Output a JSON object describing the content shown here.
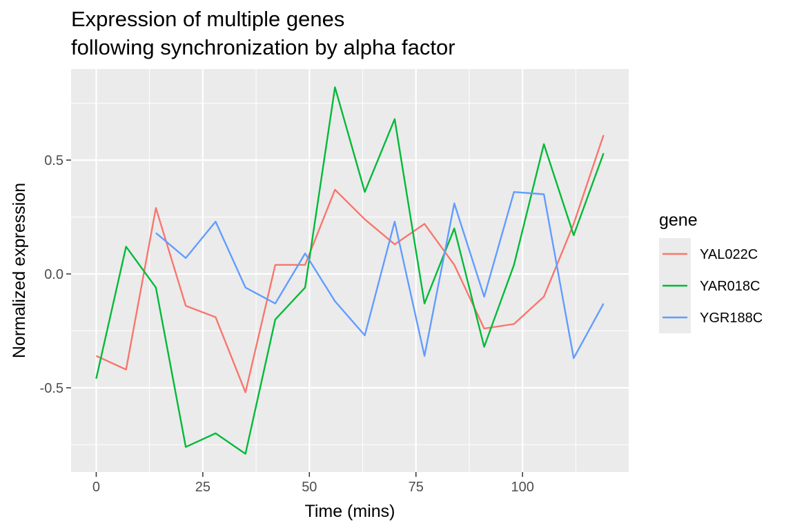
{
  "chart_data": {
    "type": "line",
    "title": [
      "Expression of multiple genes",
      "following synchronization by alpha factor"
    ],
    "xlabel": "Time (mins)",
    "ylabel": "Normalized expression",
    "xlim": [
      -5.9,
      124.9
    ],
    "ylim": [
      -0.87,
      0.9
    ],
    "x_ticks": [
      0,
      25,
      50,
      75,
      100
    ],
    "x_tick_labels": [
      "0",
      "25",
      "50",
      "75",
      "100"
    ],
    "y_ticks": [
      -0.5,
      0.0,
      0.5
    ],
    "y_tick_labels": [
      "-0.5",
      "0.0",
      "0.5"
    ],
    "grid": true,
    "legend_title": "gene",
    "legend_position": "right",
    "series": [
      {
        "name": "YAL022C",
        "color": "#F8766D",
        "points": [
          [
            0,
            -0.36
          ],
          [
            7,
            -0.42
          ],
          [
            14,
            0.29
          ],
          [
            21,
            -0.14
          ],
          [
            28,
            -0.19
          ],
          [
            35,
            -0.52
          ],
          [
            42,
            0.04
          ],
          [
            49,
            0.04
          ],
          [
            56,
            0.37
          ],
          [
            63,
            0.24
          ],
          [
            70,
            0.13
          ],
          [
            77,
            0.22
          ],
          [
            84,
            0.04
          ],
          [
            91,
            -0.24
          ],
          [
            98,
            -0.22
          ],
          [
            105,
            -0.1
          ],
          [
            112,
            0.22
          ],
          [
            119,
            0.61
          ]
        ]
      },
      {
        "name": "YAR018C",
        "color": "#00BA38",
        "points": [
          [
            0,
            -0.46
          ],
          [
            7,
            0.12
          ],
          [
            14,
            -0.06
          ],
          [
            21,
            -0.76
          ],
          [
            28,
            -0.7
          ],
          [
            35,
            -0.79
          ],
          [
            42,
            -0.2
          ],
          [
            49,
            -0.06
          ],
          [
            56,
            0.82
          ],
          [
            63,
            0.36
          ],
          [
            70,
            0.68
          ],
          [
            77,
            -0.13
          ],
          [
            84,
            0.2
          ],
          [
            91,
            -0.32
          ],
          [
            98,
            0.04
          ],
          [
            105,
            0.57
          ],
          [
            112,
            0.17
          ],
          [
            119,
            0.53
          ]
        ]
      },
      {
        "name": "YGR188C",
        "color": "#619CFF",
        "points": [
          [
            14,
            0.18
          ],
          [
            21,
            0.07
          ],
          [
            28,
            0.23
          ],
          [
            35,
            -0.06
          ],
          [
            42,
            -0.13
          ],
          [
            49,
            0.09
          ],
          [
            56,
            -0.12
          ],
          [
            63,
            -0.27
          ],
          [
            70,
            0.23
          ],
          [
            77,
            -0.36
          ],
          [
            84,
            0.31
          ],
          [
            91,
            -0.1
          ],
          [
            98,
            0.36
          ],
          [
            105,
            0.35
          ],
          [
            112,
            -0.37
          ],
          [
            119,
            -0.13
          ]
        ]
      }
    ]
  }
}
